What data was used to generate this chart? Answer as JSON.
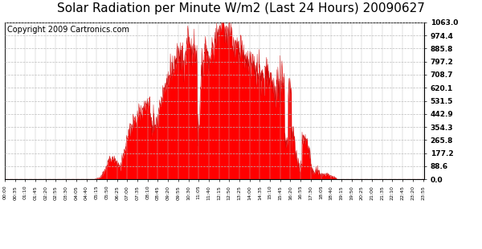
{
  "title": "Solar Radiation per Minute W/m2 (Last 24 Hours) 20090627",
  "copyright": "Copyright 2009 Cartronics.com",
  "yticks": [
    0.0,
    88.6,
    177.2,
    265.8,
    354.3,
    442.9,
    531.5,
    620.1,
    708.7,
    797.2,
    885.8,
    974.4,
    1063.0
  ],
  "ymax": 1063.0,
  "ymin": 0.0,
  "fill_color": "#FF0000",
  "line_color": "#CC0000",
  "dashed_line_color": "#FF0000",
  "grid_color": "#BBBBBB",
  "background_color": "#FFFFFF",
  "title_fontsize": 11,
  "copyright_fontsize": 7,
  "tick_interval_min": 35
}
